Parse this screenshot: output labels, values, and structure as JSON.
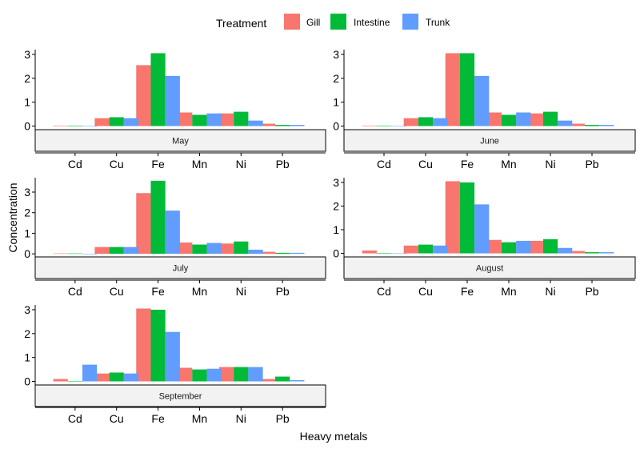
{
  "chart_data": {
    "type": "bar",
    "xlabel": "Heavy metals",
    "ylabel": "Concentration",
    "legend": {
      "title": "Treatment",
      "placement": "top",
      "entries": [
        "Gill",
        "Intestine",
        "Trunk"
      ]
    },
    "colors": {
      "Gill": "#F8766D",
      "Intestine": "#00BA38",
      "Trunk": "#619CFF"
    },
    "categories": [
      "Cd",
      "Cu",
      "Fe",
      "Mn",
      "Ni",
      "Pb"
    ],
    "yticks": [
      0,
      1,
      2,
      3
    ],
    "facets": [
      {
        "label": "May",
        "ylim": [
          -0.15,
          3.2
        ],
        "series": [
          {
            "name": "Gill",
            "values": [
              0.02,
              0.33,
              2.55,
              0.57,
              0.53,
              0.1
            ]
          },
          {
            "name": "Intestine",
            "values": [
              0.02,
              0.37,
              3.05,
              0.47,
              0.6,
              0.05
            ]
          },
          {
            "name": "Trunk",
            "values": [
              0.0,
              0.33,
              2.1,
              0.53,
              0.23,
              0.05
            ]
          }
        ]
      },
      {
        "label": "June",
        "ylim": [
          -0.15,
          3.2
        ],
        "series": [
          {
            "name": "Gill",
            "values": [
              0.02,
              0.33,
              3.05,
              0.57,
              0.53,
              0.1
            ]
          },
          {
            "name": "Intestine",
            "values": [
              0.02,
              0.37,
              3.05,
              0.47,
              0.6,
              0.05
            ]
          },
          {
            "name": "Trunk",
            "values": [
              0.0,
              0.33,
              2.1,
              0.57,
              0.23,
              0.05
            ]
          }
        ]
      },
      {
        "label": "July",
        "ylim": [
          -0.15,
          3.7
        ],
        "series": [
          {
            "name": "Gill",
            "values": [
              0.02,
              0.33,
              2.95,
              0.55,
              0.5,
              0.1
            ]
          },
          {
            "name": "Intestine",
            "values": [
              0.02,
              0.33,
              3.55,
              0.45,
              0.6,
              0.05
            ]
          },
          {
            "name": "Trunk",
            "values": [
              0.0,
              0.33,
              2.1,
              0.53,
              0.2,
              0.05
            ]
          }
        ]
      },
      {
        "label": "August",
        "ylim": [
          -0.15,
          3.2
        ],
        "series": [
          {
            "name": "Gill",
            "values": [
              0.12,
              0.33,
              3.05,
              0.57,
              0.53,
              0.1
            ]
          },
          {
            "name": "Intestine",
            "values": [
              0.02,
              0.37,
              3.0,
              0.47,
              0.6,
              0.05
            ]
          },
          {
            "name": "Trunk",
            "values": [
              0.0,
              0.33,
              2.07,
              0.53,
              0.23,
              0.05
            ]
          }
        ]
      },
      {
        "label": "September",
        "ylim": [
          -0.15,
          3.2
        ],
        "series": [
          {
            "name": "Gill",
            "values": [
              0.1,
              0.33,
              3.05,
              0.57,
              0.6,
              0.1
            ]
          },
          {
            "name": "Intestine",
            "values": [
              0.02,
              0.37,
              3.0,
              0.5,
              0.6,
              0.2
            ]
          },
          {
            "name": "Trunk",
            "values": [
              0.7,
              0.33,
              2.07,
              0.53,
              0.6,
              0.05
            ]
          }
        ]
      }
    ]
  }
}
